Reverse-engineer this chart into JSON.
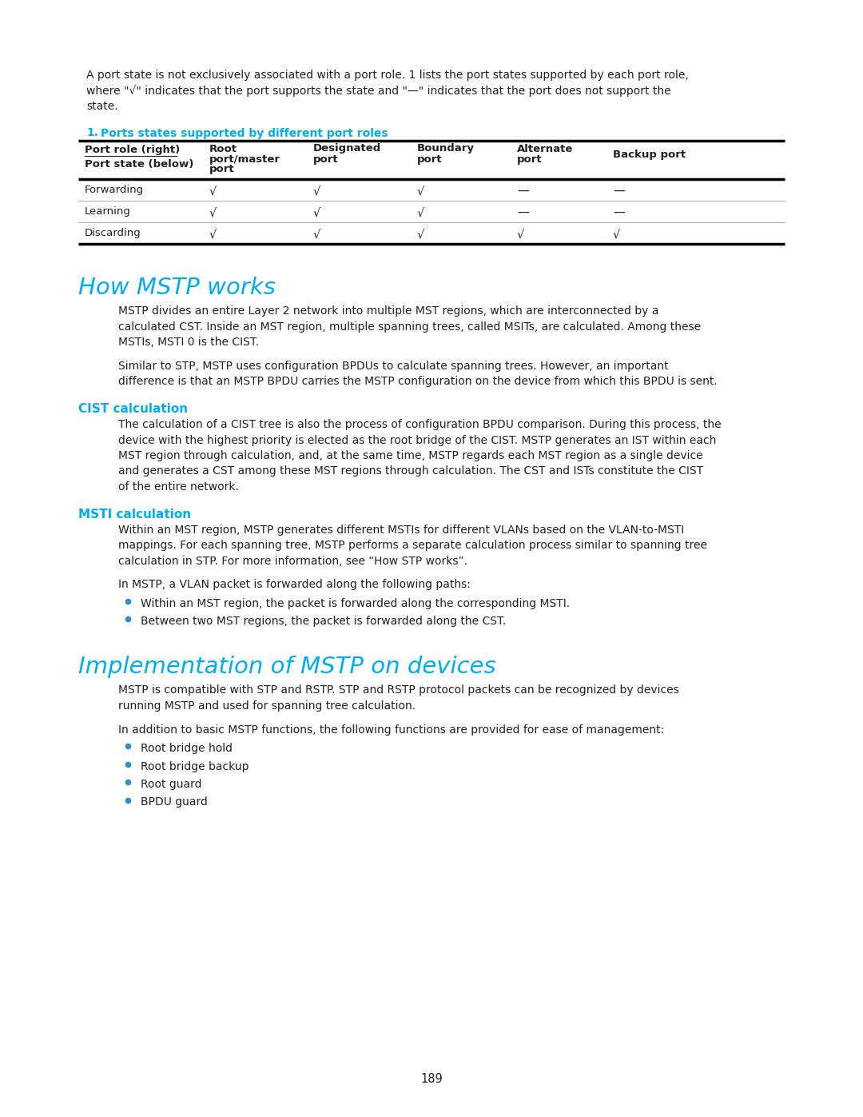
{
  "bg_color": "#ffffff",
  "text_color": "#231f20",
  "cyan_color": "#00AEEF",
  "page_number": "189",
  "intro_lines": [
    "A port state is not exclusively associated with a port role. 1 lists the port states supported by each port role,",
    "where \"√\" indicates that the port supports the state and \"—\" indicates that the port does not support the",
    "state."
  ],
  "table_title_num": "1.",
  "table_title_text": "   Ports states supported by different port roles",
  "table_rows": [
    [
      "Forwarding",
      "√",
      "√",
      "√",
      "—",
      "—"
    ],
    [
      "Learning",
      "√",
      "√",
      "√",
      "—",
      "—"
    ],
    [
      "Discarding",
      "√",
      "√",
      "√",
      "√",
      "√"
    ]
  ],
  "section1_title": "How MSTP works",
  "section1_para1_lines": [
    "MSTP divides an entire Layer 2 network into multiple MST regions, which are interconnected by a",
    "calculated CST. Inside an MST region, multiple spanning trees, called MSITs, are calculated. Among these",
    "MSTIs, MSTI 0 is the CIST."
  ],
  "section1_para2_lines": [
    "Similar to STP, MSTP uses configuration BPDUs to calculate spanning trees. However, an important",
    "difference is that an MSTP BPDU carries the MSTP configuration on the device from which this BPDU is sent."
  ],
  "subsection1_title": "CIST calculation",
  "subsection1_lines": [
    "The calculation of a CIST tree is also the process of configuration BPDU comparison. During this process, the",
    "device with the highest priority is elected as the root bridge of the CIST. MSTP generates an IST within each",
    "MST region through calculation, and, at the same time, MSTP regards each MST region as a single device",
    "and generates a CST among these MST regions through calculation. The CST and ISTs constitute the CIST",
    "of the entire network."
  ],
  "subsection2_title": "MSTI calculation",
  "subsection2_lines1": [
    "Within an MST region, MSTP generates different MSTIs for different VLANs based on the VLAN-to-MSTI",
    "mappings. For each spanning tree, MSTP performs a separate calculation process similar to spanning tree",
    "calculation in STP. For more information, see “How STP works”."
  ],
  "subsection2_para2": "In MSTP, a VLAN packet is forwarded along the following paths:",
  "subsection2_bullets": [
    "Within an MST region, the packet is forwarded along the corresponding MSTI.",
    "Between two MST regions, the packet is forwarded along the CST."
  ],
  "section2_title": "Implementation of MSTP on devices",
  "section2_para1_lines": [
    "MSTP is compatible with STP and RSTP. STP and RSTP protocol packets can be recognized by devices",
    "running MSTP and used for spanning tree calculation."
  ],
  "section2_para2": "In addition to basic MSTP functions, the following functions are provided for ease of management:",
  "section2_bullets": [
    "Root bridge hold",
    "Root bridge backup",
    "Root guard",
    "BPDU guard"
  ]
}
